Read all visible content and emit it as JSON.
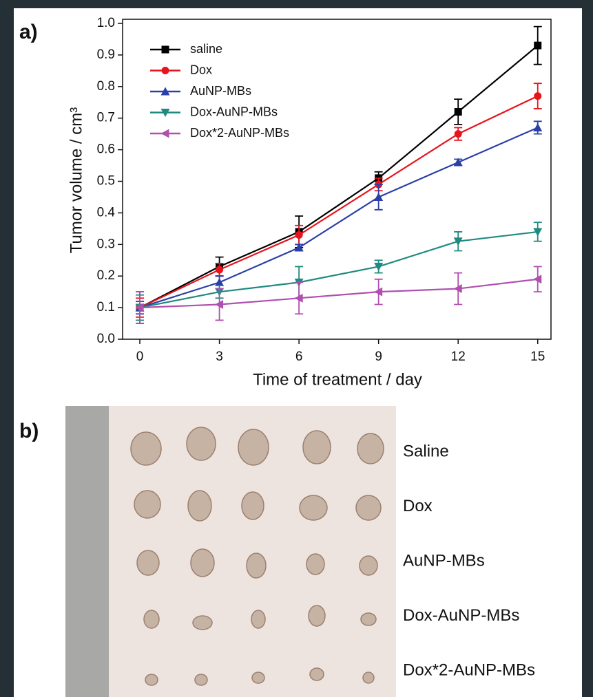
{
  "chart_data": {
    "type": "line",
    "panel_label": "a)",
    "x_label": "Time of treatment / day",
    "y_label": "Tumor volume / cm³",
    "x": [
      0,
      3,
      6,
      9,
      12,
      15
    ],
    "xlim": [
      -0.65,
      15.5
    ],
    "xticks": [
      0,
      3,
      6,
      9,
      12,
      15
    ],
    "ylim": [
      0,
      1.0
    ],
    "yticks": [
      {
        "value": 0,
        "label": "0.0"
      },
      0.1,
      0.2,
      0.3,
      0.4,
      0.5,
      0.6,
      0.7,
      0.8,
      0.9,
      {
        "value": 1,
        "label": "1.0"
      }
    ],
    "legend": "top-left",
    "series": [
      {
        "name": "saline",
        "color": "#000000",
        "marker": "square",
        "values": [
          0.1,
          0.23,
          0.34,
          0.51,
          0.72,
          0.93
        ],
        "errors": [
          0.05,
          0.03,
          0.05,
          0.02,
          0.04,
          0.06
        ]
      },
      {
        "name": "Dox",
        "color": "#e8141c",
        "marker": "circle",
        "values": [
          0.1,
          0.22,
          0.33,
          0.49,
          0.65,
          0.77
        ],
        "errors": [
          0.03,
          0.02,
          0.03,
          0.02,
          0.02,
          0.04
        ]
      },
      {
        "name": "AuNP-MBs",
        "color": "#2a3fa8",
        "marker": "triangle-up",
        "values": [
          0.1,
          0.18,
          0.29,
          0.45,
          0.56,
          0.67
        ],
        "errors": [
          0.02,
          0.02,
          0.01,
          0.04,
          0.01,
          0.02
        ]
      },
      {
        "name": "Dox-AuNP-MBs",
        "color": "#1f8a80",
        "marker": "triangle-down",
        "values": [
          0.1,
          0.15,
          0.18,
          0.23,
          0.31,
          0.34
        ],
        "errors": [
          0.04,
          0.02,
          0.05,
          0.02,
          0.03,
          0.03
        ]
      },
      {
        "name": "Dox*2-AuNP-MBs",
        "color": "#b04fb0",
        "marker": "triangle-left",
        "values": [
          0.1,
          0.11,
          0.13,
          0.15,
          0.16,
          0.19
        ],
        "errors": [
          0.05,
          0.05,
          0.05,
          0.04,
          0.05,
          0.04
        ]
      }
    ]
  },
  "photo": {
    "panel_label": "b)",
    "row_labels": [
      "Saline",
      "Dox",
      "AuNP-MBs",
      "Dox-AuNP-MBs",
      "Dox*2-AuNP-MBs"
    ]
  }
}
